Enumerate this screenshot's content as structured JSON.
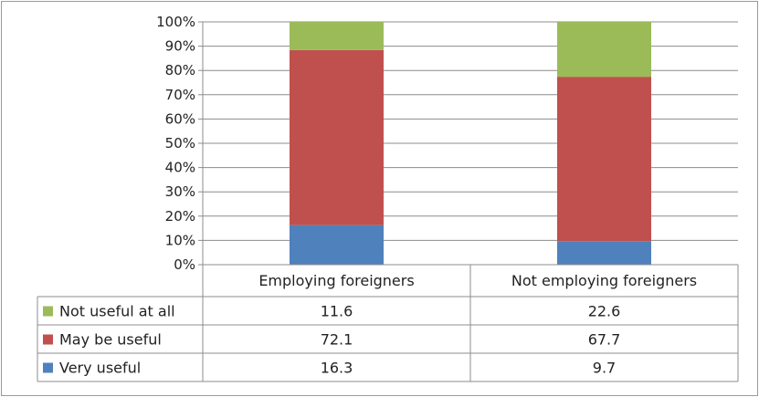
{
  "chart_data": {
    "type": "bar",
    "stacked": true,
    "categories": [
      "Employing foreigners",
      "Not employing foreigners"
    ],
    "series": [
      {
        "name": "Very useful",
        "values": [
          16.3,
          9.7
        ],
        "color": "#4f81bd"
      },
      {
        "name": "May be useful",
        "values": [
          72.1,
          67.7
        ],
        "color": "#c0504d"
      },
      {
        "name": "Not useful at all",
        "values": [
          11.6,
          22.6
        ],
        "color": "#9bbb59"
      }
    ],
    "y_ticks": [
      "0%",
      "10%",
      "20%",
      "30%",
      "40%",
      "50%",
      "60%",
      "70%",
      "80%",
      "90%",
      "100%"
    ],
    "ylim": [
      0,
      100
    ],
    "grid": true,
    "data_table": true,
    "table_rows": [
      {
        "name": "Not useful at all",
        "values": [
          "11.6",
          "22.6"
        ]
      },
      {
        "name": "May be useful",
        "values": [
          "72.1",
          "67.7"
        ]
      },
      {
        "name": "Very useful",
        "values": [
          "16.3",
          "9.7"
        ]
      }
    ]
  }
}
